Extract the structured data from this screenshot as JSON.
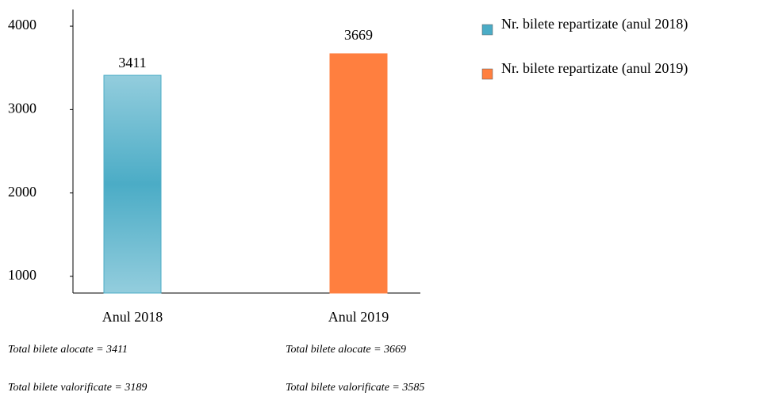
{
  "chart_data": {
    "type": "bar",
    "categories": [
      "Anul 2018",
      "Anul 2019"
    ],
    "series": [
      {
        "name": "Nr. bilete repartizate (anul 2018)",
        "color": "#4bacc6",
        "values": [
          3411,
          null
        ]
      },
      {
        "name": "Nr. bilete repartizate (anul 2019)",
        "color": "#ff7f3f",
        "values": [
          null,
          3669
        ]
      }
    ],
    "ylim": [
      800,
      4200
    ],
    "yticks": [
      1000,
      2000,
      3000,
      4000
    ],
    "grid": false,
    "legend": "right",
    "annotations": [
      "Total bilete alocate = 3411",
      "Total bilete alocate = 3669",
      "Total bilete valorificate = 3189",
      "Total bilete valorificate = 3585"
    ]
  }
}
